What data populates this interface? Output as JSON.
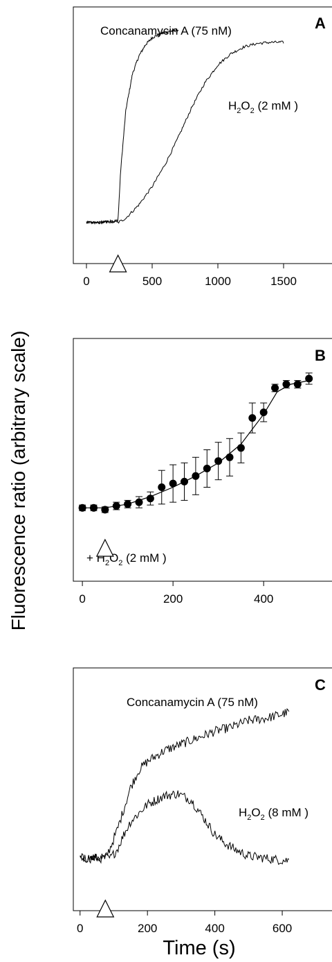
{
  "figure": {
    "ylabel": "Fluorescence ratio (arbitrary scale)",
    "xlabel": "Time (s)"
  },
  "chart_data": [
    {
      "panel": "A",
      "type": "line",
      "xlim": [
        -100,
        1900
      ],
      "ylim": [
        0,
        1
      ],
      "xticks": [
        0,
        500,
        1000,
        1500
      ],
      "yticks_labeled": false,
      "marker": {
        "type": "open-triangle",
        "x": 240
      },
      "annotations": [
        {
          "text": "Concanamycin A (75 nM)"
        },
        {
          "text": "H2O2 (2 mM )",
          "base": "H",
          "sub": "2",
          "rest": "O",
          "sub2": "2",
          "tail": " (2 mM )"
        }
      ],
      "series": [
        {
          "name": "Concanamycin A (75 nM)",
          "style": "noisy-trace",
          "x": [
            0,
            50,
            100,
            150,
            200,
            240,
            260,
            300,
            350,
            400,
            450,
            500,
            550,
            600,
            650,
            700
          ],
          "y": [
            0.12,
            0.12,
            0.12,
            0.125,
            0.125,
            0.13,
            0.35,
            0.62,
            0.78,
            0.86,
            0.91,
            0.94,
            0.955,
            0.965,
            0.97,
            0.975
          ]
        },
        {
          "name": "H2O2 (2 mM )",
          "style": "noisy-trace",
          "x": [
            0,
            100,
            200,
            240,
            300,
            400,
            500,
            600,
            700,
            800,
            900,
            1000,
            1100,
            1200,
            1300,
            1400,
            1500
          ],
          "y": [
            0.12,
            0.12,
            0.125,
            0.12,
            0.14,
            0.2,
            0.28,
            0.38,
            0.5,
            0.63,
            0.74,
            0.82,
            0.87,
            0.9,
            0.915,
            0.92,
            0.92
          ]
        }
      ]
    },
    {
      "panel": "B",
      "type": "scatter",
      "xlim": [
        -20,
        560
      ],
      "ylim": [
        0,
        1
      ],
      "xticks": [
        0,
        200,
        400
      ],
      "yticks_labeled": false,
      "marker": {
        "type": "open-triangle",
        "x": 50
      },
      "annotations": [
        {
          "text": "+ H2O2 (2 mM )"
        }
      ],
      "series": [
        {
          "name": "+ H2O2 (2 mM )",
          "x": [
            0,
            25,
            50,
            75,
            100,
            125,
            150,
            175,
            200,
            225,
            250,
            275,
            300,
            325,
            350,
            375,
            400,
            425,
            450,
            475,
            500
          ],
          "y": [
            0.14,
            0.14,
            0.13,
            0.15,
            0.16,
            0.17,
            0.19,
            0.25,
            0.27,
            0.28,
            0.31,
            0.35,
            0.39,
            0.41,
            0.46,
            0.62,
            0.65,
            0.78,
            0.8,
            0.8,
            0.83
          ],
          "err": [
            0.015,
            0.015,
            0.015,
            0.02,
            0.02,
            0.03,
            0.035,
            0.09,
            0.1,
            0.1,
            0.1,
            0.1,
            0.1,
            0.1,
            0.08,
            0.08,
            0.05,
            0.02,
            0.02,
            0.02,
            0.03
          ],
          "fit_x": [
            0,
            50,
            100,
            150,
            200,
            250,
            300,
            350,
            400,
            430,
            460,
            500
          ],
          "fit_y": [
            0.14,
            0.14,
            0.16,
            0.2,
            0.25,
            0.31,
            0.38,
            0.48,
            0.64,
            0.76,
            0.8,
            0.82
          ]
        }
      ]
    },
    {
      "panel": "C",
      "type": "line",
      "xlim": [
        -20,
        760
      ],
      "ylim": [
        0,
        1
      ],
      "xticks": [
        0,
        200,
        400,
        600
      ],
      "yticks_labeled": false,
      "marker": {
        "type": "open-triangle",
        "x": 75
      },
      "annotations": [
        {
          "text": "Concanamycin A (75 nM)"
        },
        {
          "text": "H2O2 (8 mM )"
        }
      ],
      "series": [
        {
          "name": "Concanamycin A (75 nM)",
          "style": "noisy-trace",
          "x": [
            0,
            40,
            75,
            90,
            110,
            130,
            150,
            175,
            200,
            250,
            300,
            350,
            400,
            450,
            500,
            550,
            600,
            620
          ],
          "y": [
            0.17,
            0.17,
            0.17,
            0.22,
            0.3,
            0.4,
            0.5,
            0.58,
            0.62,
            0.67,
            0.7,
            0.73,
            0.76,
            0.78,
            0.81,
            0.82,
            0.84,
            0.85
          ]
        },
        {
          "name": "H2O2 (8 mM )",
          "style": "noisy-trace",
          "x": [
            0,
            40,
            75,
            90,
            110,
            130,
            150,
            200,
            250,
            290,
            330,
            370,
            400,
            430,
            460,
            500,
            550,
            600,
            620
          ],
          "y": [
            0.17,
            0.17,
            0.17,
            0.17,
            0.21,
            0.28,
            0.34,
            0.42,
            0.46,
            0.47,
            0.44,
            0.35,
            0.28,
            0.24,
            0.21,
            0.18,
            0.17,
            0.16,
            0.16
          ]
        }
      ]
    }
  ]
}
